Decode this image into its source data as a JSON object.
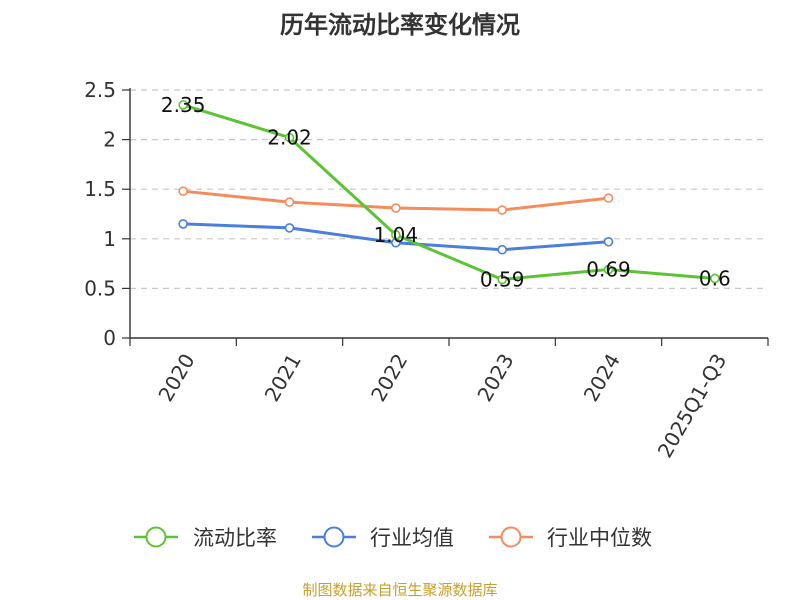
{
  "chart_data": {
    "type": "line",
    "title": "历年流动比率变化情况",
    "categories": [
      "2020",
      "2021",
      "2022",
      "2023",
      "2024",
      "2025Q1-Q3"
    ],
    "ylim": [
      0,
      2.5
    ],
    "yticks": [
      "0",
      "0.5",
      "1",
      "1.5",
      "2",
      "2.5"
    ],
    "ytick_values": [
      0,
      0.5,
      1,
      1.5,
      2,
      2.5
    ],
    "grid": true,
    "legend_position": "bottom",
    "series": [
      {
        "name": "流动比率",
        "color": "#5cc434",
        "values": [
          2.35,
          2.02,
          1.04,
          0.59,
          0.69,
          0.6
        ],
        "labels": [
          "2.35",
          "2.02",
          "1.04",
          "0.59",
          "0.69",
          "0.6"
        ]
      },
      {
        "name": "行业均值",
        "color": "#4a7fdc",
        "values": [
          1.15,
          1.11,
          0.96,
          0.89,
          0.97,
          null
        ]
      },
      {
        "name": "行业中位数",
        "color": "#f58c5c",
        "values": [
          1.48,
          1.37,
          1.31,
          1.29,
          1.41,
          null
        ]
      }
    ]
  },
  "source": {
    "text": "制图数据来自恒生聚源数据库",
    "color": "#c8a02c"
  }
}
